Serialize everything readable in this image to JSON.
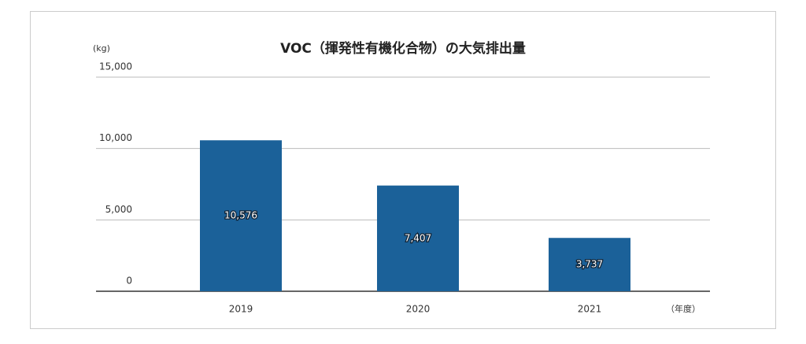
{
  "chart_data": {
    "type": "bar",
    "title": "VOC（揮発性有機化合物）の大気排出量",
    "y_label": "(kg)",
    "x_label": "（年度）",
    "categories": [
      "2019",
      "2020",
      "2021"
    ],
    "values": [
      10576,
      7407,
      3737
    ],
    "value_labels": [
      "10,576",
      "7,407",
      "3,737"
    ],
    "color": "#1b6199",
    "ylim": [
      0,
      15000
    ],
    "yticks": [
      0,
      {
        "value": 5000,
        "label": "5,000"
      },
      {
        "value": 10000,
        "label": "10,000"
      },
      {
        "value": 15000,
        "label": "15,000"
      }
    ],
    "grid": true
  }
}
